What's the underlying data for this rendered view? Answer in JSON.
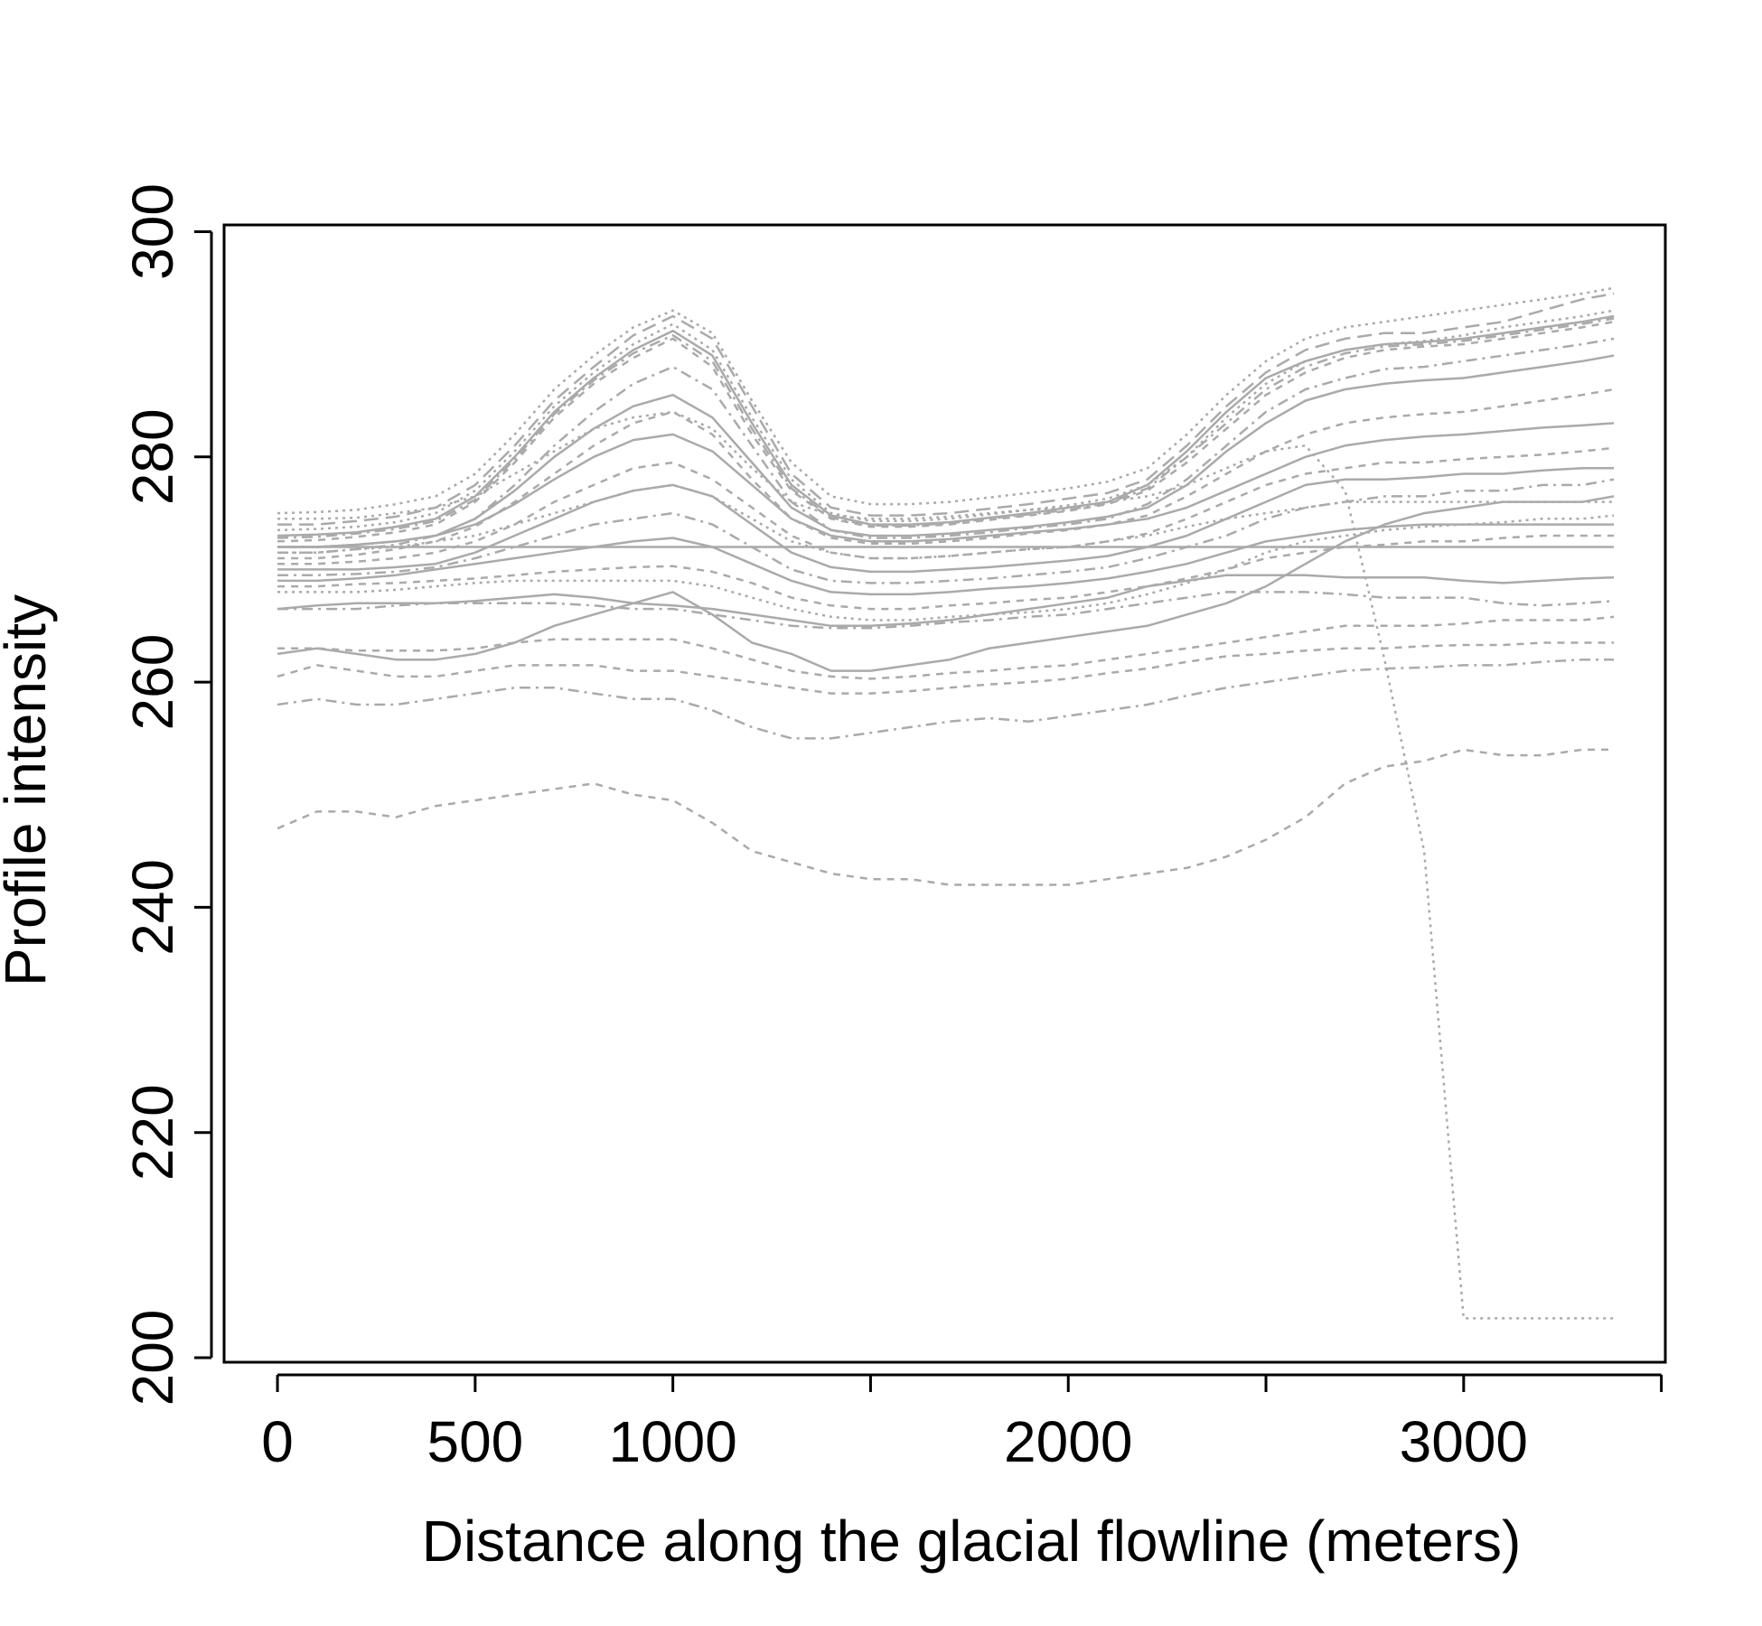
{
  "chart_data": {
    "type": "line",
    "title": "",
    "xlabel": "Distance along the glacial flowline (meters)",
    "ylabel": "Profile intensity",
    "xlim": [
      -135,
      3510
    ],
    "ylim": [
      199.6,
      300.6
    ],
    "x_ticks": [
      0,
      500,
      1000,
      1500,
      2000,
      2500,
      3000,
      3500
    ],
    "x_tick_labels": [
      "0",
      "500",
      "1000",
      "",
      "2000",
      "",
      "3000",
      ""
    ],
    "y_ticks": [
      200,
      220,
      240,
      260,
      280,
      300
    ],
    "y_tick_labels": [
      "200",
      "220",
      "240",
      "260",
      "280",
      "300"
    ],
    "grid": false,
    "legend": "none",
    "line_color": "#aaaaaa",
    "x": [
      0,
      100,
      200,
      300,
      400,
      500,
      600,
      700,
      800,
      900,
      1000,
      1100,
      1200,
      1300,
      1400,
      1500,
      1600,
      1700,
      1800,
      1900,
      2000,
      2100,
      2200,
      2300,
      2400,
      2500,
      2600,
      2700,
      2800,
      2900,
      3000,
      3100,
      3200,
      3300,
      3380
    ],
    "series": [
      {
        "dash": "8,7",
        "values": [
          272.5,
          272.6,
          272.9,
          273.3,
          274.0,
          276.0,
          279.5,
          283.5,
          286.5,
          288.8,
          290.5,
          288.0,
          282.0,
          277.0,
          274.5,
          273.8,
          273.8,
          274.0,
          274.4,
          274.8,
          275.2,
          275.8,
          277.0,
          279.5,
          282.5,
          285.5,
          287.5,
          288.8,
          289.5,
          289.8,
          290.0,
          290.5,
          291.0,
          291.5,
          292.0
        ]
      },
      {
        "dash": "none",
        "values": [
          273.0,
          273.1,
          273.3,
          273.8,
          274.5,
          276.5,
          280.0,
          284.0,
          287.0,
          289.5,
          291.2,
          289.0,
          283.0,
          277.5,
          274.8,
          274.0,
          274.0,
          274.2,
          274.6,
          275.0,
          275.5,
          276.0,
          277.5,
          280.5,
          284.0,
          287.0,
          288.5,
          289.5,
          290.0,
          290.2,
          290.5,
          291.0,
          291.5,
          292.0,
          292.5
        ]
      },
      {
        "dash": "3,5",
        "values": [
          275.0,
          275.1,
          275.3,
          275.8,
          276.5,
          278.5,
          282.0,
          286.0,
          289.0,
          291.5,
          293.0,
          291.0,
          285.0,
          279.5,
          276.5,
          275.8,
          275.8,
          276.0,
          276.4,
          276.8,
          277.2,
          277.8,
          279.0,
          282.0,
          285.5,
          288.5,
          290.5,
          291.5,
          292.0,
          292.5,
          293.0,
          293.5,
          294.0,
          294.5,
          295.0
        ]
      },
      {
        "dash": "12,6,3,6",
        "values": [
          271.5,
          271.5,
          271.8,
          272.2,
          273.0,
          274.5,
          277.5,
          281.0,
          284.0,
          286.5,
          288.0,
          286.0,
          281.0,
          276.0,
          273.5,
          272.8,
          272.8,
          273.0,
          273.3,
          273.7,
          274.0,
          274.5,
          275.8,
          278.0,
          281.0,
          284.0,
          286.0,
          287.0,
          287.8,
          288.0,
          288.5,
          289.0,
          289.5,
          290.0,
          290.5
        ]
      },
      {
        "dash": "16,8",
        "values": [
          274.0,
          274.0,
          274.3,
          274.7,
          275.5,
          277.5,
          281.0,
          285.0,
          288.0,
          290.8,
          292.5,
          290.5,
          284.5,
          278.5,
          275.5,
          274.8,
          274.8,
          275.0,
          275.4,
          275.8,
          276.3,
          276.8,
          278.0,
          281.0,
          284.5,
          287.5,
          289.5,
          290.5,
          291.0,
          291.0,
          291.5,
          292.0,
          293.0,
          294.0,
          294.5
        ]
      },
      {
        "dash": "none",
        "values": [
          272.0,
          272.0,
          272.2,
          272.5,
          273.0,
          274.5,
          277.0,
          280.0,
          282.5,
          284.5,
          285.5,
          283.5,
          279.5,
          275.5,
          273.5,
          273.0,
          273.0,
          273.2,
          273.5,
          273.8,
          274.2,
          274.7,
          275.5,
          277.5,
          280.5,
          283.0,
          285.0,
          286.0,
          286.5,
          286.8,
          287.0,
          287.5,
          288.0,
          288.5,
          289.0
        ]
      },
      {
        "dash": "3,5",
        "values": [
          273.5,
          273.6,
          273.8,
          274.2,
          275.0,
          277.0,
          280.5,
          284.5,
          287.5,
          290.0,
          291.8,
          289.5,
          283.5,
          278.0,
          275.0,
          274.3,
          274.3,
          274.5,
          274.9,
          275.3,
          275.7,
          276.3,
          277.5,
          280.0,
          283.5,
          286.5,
          288.5,
          289.5,
          290.0,
          290.3,
          290.8,
          291.5,
          292.0,
          292.5,
          293.0
        ]
      },
      {
        "dash": "8,7",
        "values": [
          271.0,
          271.0,
          271.3,
          271.8,
          272.5,
          273.8,
          276.0,
          278.5,
          281.0,
          283.0,
          284.0,
          282.0,
          278.0,
          274.5,
          272.8,
          272.3,
          272.3,
          272.5,
          272.8,
          273.2,
          273.5,
          274.0,
          274.8,
          276.5,
          278.5,
          280.5,
          282.0,
          283.0,
          283.5,
          283.8,
          284.0,
          284.5,
          285.0,
          285.5,
          286.0
        ]
      },
      {
        "dash": "12,6,3,6",
        "values": [
          272.8,
          272.9,
          273.2,
          273.6,
          274.3,
          276.2,
          279.8,
          283.8,
          286.8,
          289.2,
          290.8,
          288.5,
          282.5,
          277.2,
          274.6,
          273.9,
          273.9,
          274.1,
          274.5,
          274.9,
          275.3,
          275.9,
          277.2,
          280.0,
          283.0,
          286.0,
          288.0,
          289.2,
          289.8,
          290.0,
          290.3,
          290.8,
          291.3,
          291.8,
          292.3
        ]
      },
      {
        "dash": "none",
        "values": [
          272.0,
          272.0,
          272.2,
          272.5,
          273.0,
          274.0,
          275.8,
          278.0,
          280.0,
          281.5,
          282.0,
          280.5,
          277.5,
          274.5,
          273.0,
          272.5,
          272.5,
          272.7,
          273.0,
          273.3,
          273.6,
          274.0,
          274.5,
          275.5,
          277.0,
          278.5,
          280.0,
          281.0,
          281.5,
          281.8,
          282.0,
          282.3,
          282.6,
          282.8,
          283.0
        ]
      },
      {
        "dash": "8,7",
        "values": [
          270.5,
          270.5,
          270.7,
          271.0,
          271.5,
          272.5,
          274.0,
          276.0,
          277.5,
          279.0,
          279.5,
          278.0,
          275.5,
          273.0,
          271.5,
          271.0,
          271.0,
          271.2,
          271.5,
          271.8,
          272.0,
          272.5,
          273.2,
          274.5,
          276.0,
          277.5,
          278.5,
          279.0,
          279.5,
          279.5,
          279.8,
          280.0,
          280.2,
          280.5,
          280.8
        ]
      },
      {
        "dash": "none",
        "values": [
          272.0,
          272.0,
          272.0,
          272.0,
          272.0,
          272.0,
          272.0,
          272.0,
          272.0,
          272.0,
          272.0,
          272.0,
          272.0,
          272.0,
          272.0,
          272.0,
          272.0,
          272.0,
          272.0,
          272.0,
          272.0,
          272.0,
          272.0,
          272.0,
          272.0,
          272.0,
          272.0,
          272.0,
          272.0,
          272.0,
          272.0,
          272.0,
          272.0,
          272.0,
          272.0
        ]
      },
      {
        "dash": "3,5",
        "values": [
          271.5,
          271.5,
          271.8,
          272.0,
          272.5,
          273.0,
          274.0,
          275.0,
          276.0,
          277.0,
          277.5,
          276.5,
          274.5,
          272.5,
          271.5,
          271.0,
          271.0,
          271.2,
          271.5,
          271.8,
          272.0,
          272.5,
          273.0,
          273.8,
          274.5,
          275.0,
          275.5,
          276.0,
          276.0,
          276.0,
          276.0,
          276.0,
          276.0,
          276.0,
          276.0
        ]
      },
      {
        "dash": "none",
        "values": [
          270.0,
          270.0,
          270.0,
          270.2,
          270.5,
          271.5,
          273.0,
          274.5,
          276.0,
          277.0,
          277.5,
          276.5,
          274.0,
          271.5,
          270.2,
          269.8,
          269.8,
          270.0,
          270.2,
          270.5,
          270.8,
          271.2,
          272.0,
          273.0,
          274.5,
          276.0,
          277.5,
          278.0,
          278.0,
          278.2,
          278.5,
          278.5,
          278.8,
          279.0,
          279.0
        ]
      },
      {
        "dash": "12,6,3,6",
        "values": [
          269.5,
          269.5,
          269.6,
          269.8,
          270.2,
          271.0,
          272.0,
          273.0,
          274.0,
          274.5,
          275.0,
          274.0,
          272.0,
          270.0,
          269.0,
          268.8,
          268.8,
          269.0,
          269.2,
          269.5,
          269.8,
          270.2,
          271.0,
          272.0,
          273.0,
          274.5,
          275.5,
          276.0,
          276.5,
          276.5,
          277.0,
          277.0,
          277.5,
          277.5,
          278.0
        ]
      },
      {
        "dash": "none",
        "values": [
          269.0,
          269.0,
          269.2,
          269.5,
          270.0,
          270.5,
          271.0,
          271.5,
          272.0,
          272.5,
          272.8,
          272.0,
          270.5,
          269.0,
          268.0,
          267.8,
          267.8,
          268.0,
          268.3,
          268.5,
          268.8,
          269.2,
          269.8,
          270.5,
          271.5,
          272.5,
          273.0,
          273.5,
          273.8,
          274.0,
          274.0,
          274.0,
          274.0,
          274.0,
          274.0
        ]
      },
      {
        "dash": "8,7",
        "values": [
          268.5,
          268.5,
          268.7,
          268.8,
          269.0,
          269.2,
          269.5,
          269.8,
          270.0,
          270.2,
          270.3,
          269.8,
          268.8,
          267.5,
          266.8,
          266.5,
          266.5,
          266.8,
          267.0,
          267.3,
          267.5,
          268.0,
          268.5,
          269.2,
          270.0,
          271.0,
          271.5,
          272.0,
          272.2,
          272.5,
          272.5,
          272.8,
          273.0,
          273.0,
          273.0
        ]
      },
      {
        "dash": "3,5",
        "values": [
          268.0,
          268.0,
          268.0,
          268.2,
          268.5,
          268.8,
          269.0,
          269.0,
          269.0,
          269.0,
          269.0,
          268.5,
          267.5,
          266.5,
          265.8,
          265.5,
          265.5,
          265.8,
          266.0,
          266.2,
          266.5,
          267.0,
          267.8,
          268.8,
          270.0,
          271.5,
          272.5,
          273.0,
          273.5,
          273.8,
          274.0,
          274.2,
          274.5,
          274.5,
          274.8
        ]
      },
      {
        "dash": "none",
        "values": [
          266.5,
          266.8,
          267.0,
          267.0,
          267.0,
          267.2,
          267.5,
          267.8,
          267.5,
          267.0,
          266.8,
          266.5,
          266.0,
          265.5,
          265.0,
          265.0,
          265.2,
          265.5,
          266.0,
          266.5,
          267.0,
          267.5,
          268.5,
          269.0,
          269.5,
          269.5,
          269.5,
          269.3,
          269.3,
          269.3,
          269.0,
          268.8,
          269.0,
          269.2,
          269.3
        ]
      },
      {
        "dash": "12,6,3,6",
        "values": [
          266.5,
          266.5,
          266.5,
          266.8,
          267.0,
          267.0,
          267.0,
          267.0,
          266.8,
          266.5,
          266.5,
          266.0,
          265.5,
          265.0,
          264.8,
          264.8,
          265.0,
          265.3,
          265.5,
          265.8,
          266.0,
          266.5,
          267.0,
          267.5,
          268.0,
          268.0,
          268.0,
          267.8,
          267.5,
          267.5,
          267.5,
          267.0,
          266.8,
          267.0,
          267.2
        ]
      },
      {
        "dash": "none",
        "values": [
          262.5,
          263.0,
          262.5,
          262.0,
          262.0,
          262.5,
          263.5,
          265.0,
          266.0,
          267.0,
          268.0,
          266.0,
          263.5,
          262.5,
          261.0,
          261.0,
          261.5,
          262.0,
          263.0,
          263.5,
          264.0,
          264.5,
          265.0,
          266.0,
          267.0,
          268.5,
          270.5,
          272.5,
          274.0,
          275.0,
          275.5,
          276.0,
          276.0,
          276.0,
          276.5
        ]
      },
      {
        "dash": "8,7",
        "values": [
          263.0,
          263.0,
          262.8,
          262.8,
          262.8,
          263.0,
          263.5,
          263.8,
          263.8,
          263.8,
          263.8,
          263.0,
          262.0,
          261.0,
          260.5,
          260.3,
          260.5,
          260.8,
          261.0,
          261.3,
          261.5,
          262.0,
          262.5,
          263.0,
          263.5,
          264.0,
          264.5,
          265.0,
          265.0,
          265.0,
          265.2,
          265.5,
          265.5,
          265.5,
          265.8
        ]
      },
      {
        "dash": "8,7",
        "values": [
          260.5,
          261.5,
          261.0,
          260.5,
          260.5,
          261.0,
          261.5,
          261.5,
          261.5,
          261.0,
          261.0,
          260.5,
          260.0,
          259.5,
          259.0,
          259.0,
          259.2,
          259.5,
          259.8,
          260.0,
          260.3,
          260.8,
          261.2,
          261.8,
          262.3,
          262.5,
          262.8,
          263.0,
          263.0,
          263.2,
          263.3,
          263.3,
          263.5,
          263.5,
          263.5
        ]
      },
      {
        "dash": "12,6,3,6",
        "values": [
          258.0,
          258.5,
          258.0,
          258.0,
          258.5,
          259.0,
          259.5,
          259.5,
          259.0,
          258.5,
          258.5,
          257.5,
          256.0,
          255.0,
          255.0,
          255.5,
          256.0,
          256.5,
          256.8,
          256.5,
          257.0,
          257.5,
          258.0,
          258.8,
          259.5,
          260.0,
          260.5,
          261.0,
          261.2,
          261.3,
          261.5,
          261.5,
          261.8,
          262.0,
          262.0
        ]
      },
      {
        "dash": "8,7",
        "values": [
          247.0,
          248.5,
          248.5,
          248.0,
          249.0,
          249.5,
          250.0,
          250.5,
          251.0,
          250.0,
          249.5,
          247.5,
          245.0,
          244.0,
          243.0,
          242.5,
          242.5,
          242.0,
          242.0,
          242.0,
          242.0,
          242.5,
          243.0,
          243.5,
          244.5,
          246.0,
          248.0,
          251.0,
          252.5,
          253.0,
          254.0,
          253.5,
          253.5,
          254.0,
          254.0
        ]
      },
      {
        "dash": "3,5",
        "values": [
          274.5,
          274.5,
          274.6,
          275.0,
          275.5,
          276.5,
          278.5,
          280.5,
          282.5,
          283.5,
          284.0,
          282.5,
          279.0,
          276.0,
          274.8,
          274.5,
          274.5,
          274.7,
          275.0,
          275.3,
          275.5,
          276.0,
          276.5,
          277.5,
          279.0,
          280.5,
          281.0,
          277.0,
          262.0,
          245.0,
          203.5,
          203.5,
          203.5,
          203.5,
          203.5
        ]
      }
    ]
  }
}
